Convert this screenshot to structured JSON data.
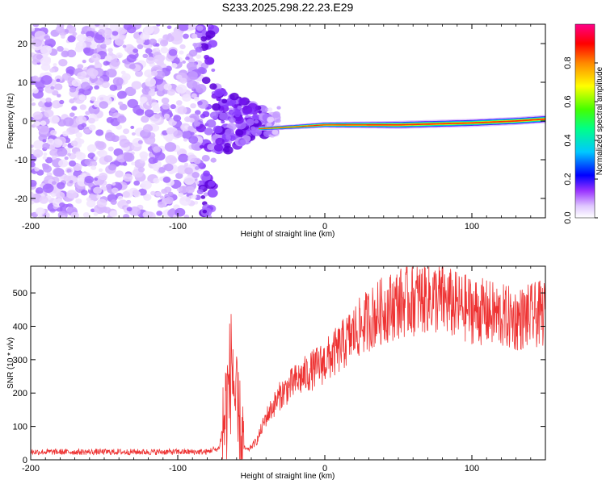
{
  "title": "S233.2025.298.22.23.E29",
  "charts": [
    {
      "type": "heatmap",
      "xlabel": "Height of straight line (km)",
      "ylabel": "Frequency (Hz)",
      "xlim": [
        -200,
        150
      ],
      "ylim": [
        -25,
        25
      ],
      "xticks": [
        -200,
        -100,
        0,
        100
      ],
      "yticks": [
        -20,
        -10,
        0,
        10,
        20
      ],
      "colorbar": {
        "label": "Normalized spectral amplitude",
        "range": [
          0,
          1
        ],
        "ticks": [
          "0.0",
          "0.2",
          "0.4",
          "0.6",
          "0.8"
        ],
        "colors": [
          "#ffffff",
          "#cc99ff",
          "#6600cc",
          "#0000ff",
          "#00ffff",
          "#00ff00",
          "#ffff00",
          "#ff8800",
          "#ff0000",
          "#ff00ff"
        ]
      },
      "signal_band": {
        "start_km": -45,
        "freq_hz": [
          -2,
          -1.5,
          -1,
          -1,
          -0.5,
          0,
          0.5
        ],
        "freq_at_km": [
          -45,
          -20,
          0,
          50,
          100,
          130,
          150
        ]
      }
    },
    {
      "type": "line",
      "xlabel": "Height of straight line (km)",
      "ylabel": "SNR (10 * v/v)",
      "xlim": [
        -200,
        150
      ],
      "ylim": [
        0,
        580
      ],
      "xticks": [
        -200,
        -100,
        0,
        100
      ],
      "yticks": [
        0,
        100,
        200,
        300,
        400,
        500
      ],
      "color": "#ee3333",
      "series_envelope": {
        "x": [
          -200,
          -80,
          -72,
          -67,
          -63,
          -60,
          -57,
          -52,
          -46,
          -40,
          -30,
          -20,
          -10,
          0,
          10,
          20,
          30,
          40,
          50,
          60,
          70,
          80,
          90,
          100,
          110,
          120,
          130,
          140,
          150
        ],
        "y": [
          20,
          20,
          35,
          150,
          300,
          120,
          40,
          30,
          60,
          130,
          200,
          240,
          270,
          300,
          340,
          390,
          430,
          460,
          480,
          490,
          500,
          490,
          470,
          460,
          450,
          440,
          430,
          440,
          450
        ]
      }
    }
  ]
}
